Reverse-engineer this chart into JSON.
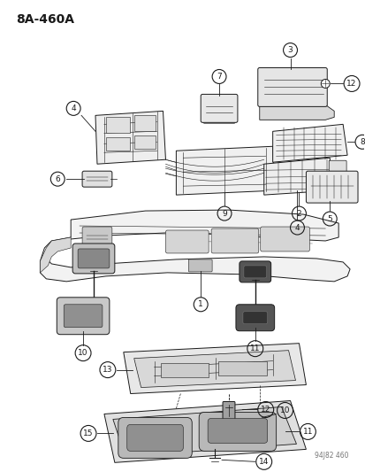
{
  "title": "8A-460A",
  "footer": "94J82 460",
  "bg_color": "#ffffff",
  "lc": "#1a1a1a",
  "fig_width": 4.14,
  "fig_height": 5.33,
  "dpi": 100
}
